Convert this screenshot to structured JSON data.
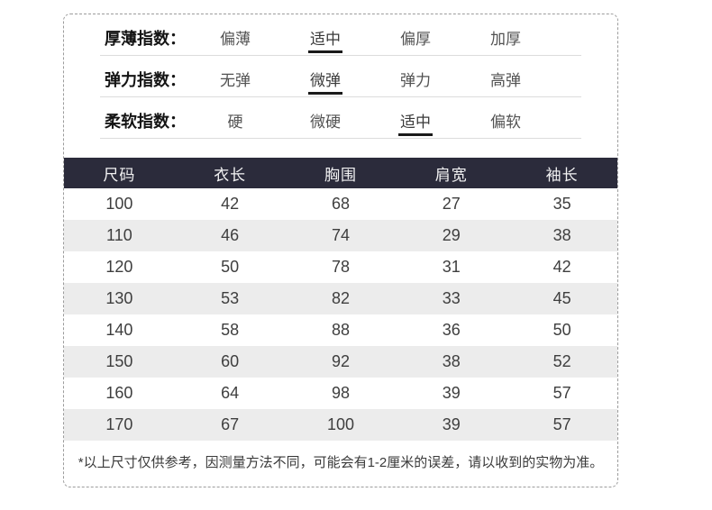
{
  "spec_section": {
    "rows": [
      {
        "id": "thickness",
        "label": "厚薄指数：",
        "options": [
          "偏薄",
          "适中",
          "偏厚",
          "加厚"
        ],
        "selected_index": 1,
        "selected_option": "适中"
      },
      {
        "id": "elasticity",
        "label": "弹力指数：",
        "options": [
          "无弹",
          "微弹",
          "弹力",
          "高弹"
        ],
        "selected_index": 1,
        "selected_option": "微弹"
      },
      {
        "id": "softness",
        "label": "柔软指数：",
        "options": [
          "硬",
          "微硬",
          "适中",
          "偏软"
        ],
        "selected_index": 2,
        "selected_option": "适中"
      }
    ]
  },
  "size_table": {
    "headers": [
      "尺码",
      "衣长",
      "胸围",
      "肩宽",
      "袖长"
    ],
    "rows": [
      {
        "cells": [
          "100",
          "42",
          "68",
          "27",
          "35"
        ]
      },
      {
        "cells": [
          "110",
          "46",
          "74",
          "29",
          "38"
        ]
      },
      {
        "cells": [
          "120",
          "50",
          "78",
          "31",
          "42"
        ]
      },
      {
        "cells": [
          "130",
          "53",
          "82",
          "33",
          "45"
        ]
      },
      {
        "cells": [
          "140",
          "58",
          "88",
          "36",
          "50"
        ]
      },
      {
        "cells": [
          "150",
          "60",
          "92",
          "38",
          "52"
        ]
      },
      {
        "cells": [
          "160",
          "64",
          "98",
          "39",
          "57"
        ]
      },
      {
        "cells": [
          "170",
          "67",
          "100",
          "39",
          "57"
        ]
      }
    ]
  },
  "footnote": "*以上尺寸仅供参考，因测量方法不同，可能会有1-2厘米的误差，请以收到的实物为准。",
  "chart_data": {
    "type": "table",
    "columns": [
      "尺码",
      "衣长",
      "胸围",
      "肩宽",
      "袖长"
    ],
    "rows": [
      [
        100,
        42,
        68,
        27,
        35
      ],
      [
        110,
        46,
        74,
        29,
        38
      ],
      [
        120,
        50,
        78,
        31,
        42
      ],
      [
        130,
        53,
        82,
        33,
        45
      ],
      [
        140,
        58,
        88,
        36,
        50
      ],
      [
        150,
        60,
        92,
        38,
        52
      ],
      [
        160,
        64,
        98,
        39,
        57
      ],
      [
        170,
        67,
        100,
        39,
        57
      ]
    ],
    "legend_position": "none",
    "grid": false
  },
  "colors": {
    "table_header_bg": "#2b2b3b",
    "table_header_text": "#f2f2f3",
    "row_alt_bg": "#ececec",
    "cell_text": "#3e3e3e",
    "spec_label_text": "#141414",
    "spec_option_text": "#525252",
    "selected_underline": "#1a1a1a",
    "separator_line": "#dcdcdc",
    "dashed_border": "#9c9c9c"
  }
}
